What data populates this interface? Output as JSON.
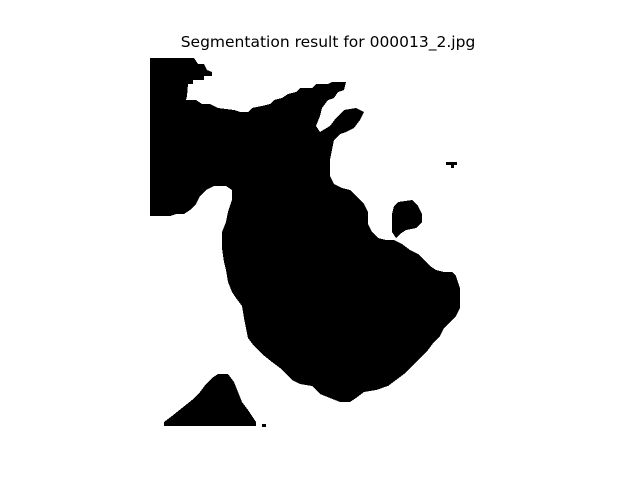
{
  "figure": {
    "title": "Segmentation result for 000013_2.jpg",
    "background_color": "#ffffff",
    "mask_foreground_color": "#000000",
    "mask_background_color": "#ffffff",
    "axes_visible": false
  }
}
